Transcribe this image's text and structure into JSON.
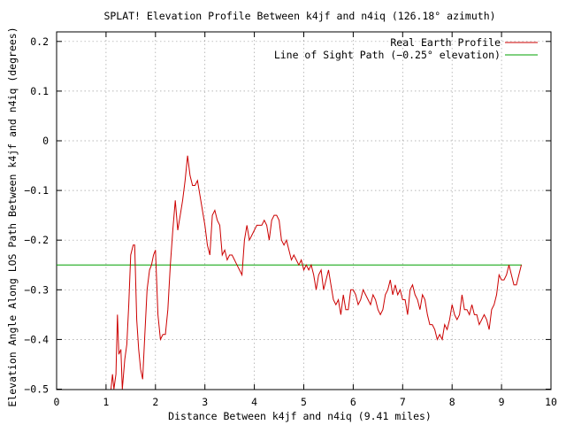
{
  "chart_data": {
    "type": "line",
    "title": "SPLAT! Elevation Profile Between k4jf and n4iq (126.18° azimuth)",
    "xlabel": "Distance Between k4jf and n4iq (9.41 miles)",
    "ylabel": "Elevation Angle Along LOS Path Between k4jf and n4iq (degrees)",
    "xlim": [
      0,
      10
    ],
    "ylim": [
      -0.5,
      0.22
    ],
    "x_ticks": [
      "0",
      "1",
      "2",
      "3",
      "4",
      "5",
      "6",
      "7",
      "8",
      "9",
      "10"
    ],
    "y_ticks": [
      "0.2",
      "0.1",
      "0",
      "−0.1",
      "−0.2",
      "−0.3",
      "−0.4",
      "−0.5"
    ],
    "grid": true,
    "legend_position": "top-right",
    "series": [
      {
        "name": "Real Earth Profile",
        "color": "#cc0000",
        "points": [
          [
            1.1,
            -0.5
          ],
          [
            1.13,
            -0.47
          ],
          [
            1.16,
            -0.5
          ],
          [
            1.2,
            -0.47
          ],
          [
            1.23,
            -0.35
          ],
          [
            1.26,
            -0.43
          ],
          [
            1.3,
            -0.42
          ],
          [
            1.33,
            -0.5
          ],
          [
            1.38,
            -0.44
          ],
          [
            1.42,
            -0.41
          ],
          [
            1.46,
            -0.33
          ],
          [
            1.5,
            -0.23
          ],
          [
            1.55,
            -0.21
          ],
          [
            1.58,
            -0.21
          ],
          [
            1.62,
            -0.36
          ],
          [
            1.66,
            -0.42
          ],
          [
            1.7,
            -0.46
          ],
          [
            1.74,
            -0.48
          ],
          [
            1.78,
            -0.4
          ],
          [
            1.83,
            -0.3
          ],
          [
            1.88,
            -0.26
          ],
          [
            1.92,
            -0.25
          ],
          [
            1.96,
            -0.23
          ],
          [
            2.0,
            -0.22
          ],
          [
            2.05,
            -0.35
          ],
          [
            2.1,
            -0.4
          ],
          [
            2.15,
            -0.39
          ],
          [
            2.2,
            -0.39
          ],
          [
            2.25,
            -0.34
          ],
          [
            2.3,
            -0.25
          ],
          [
            2.35,
            -0.18
          ],
          [
            2.4,
            -0.12
          ],
          [
            2.45,
            -0.18
          ],
          [
            2.5,
            -0.15
          ],
          [
            2.55,
            -0.12
          ],
          [
            2.6,
            -0.08
          ],
          [
            2.65,
            -0.03
          ],
          [
            2.7,
            -0.07
          ],
          [
            2.75,
            -0.09
          ],
          [
            2.8,
            -0.09
          ],
          [
            2.85,
            -0.08
          ],
          [
            2.9,
            -0.11
          ],
          [
            2.95,
            -0.14
          ],
          [
            3.0,
            -0.17
          ],
          [
            3.05,
            -0.21
          ],
          [
            3.1,
            -0.23
          ],
          [
            3.15,
            -0.15
          ],
          [
            3.2,
            -0.14
          ],
          [
            3.25,
            -0.16
          ],
          [
            3.3,
            -0.17
          ],
          [
            3.35,
            -0.23
          ],
          [
            3.4,
            -0.22
          ],
          [
            3.45,
            -0.24
          ],
          [
            3.5,
            -0.23
          ],
          [
            3.55,
            -0.23
          ],
          [
            3.6,
            -0.24
          ],
          [
            3.65,
            -0.25
          ],
          [
            3.7,
            -0.26
          ],
          [
            3.75,
            -0.27
          ],
          [
            3.8,
            -0.2
          ],
          [
            3.85,
            -0.17
          ],
          [
            3.9,
            -0.2
          ],
          [
            3.95,
            -0.19
          ],
          [
            4.0,
            -0.18
          ],
          [
            4.05,
            -0.17
          ],
          [
            4.1,
            -0.17
          ],
          [
            4.15,
            -0.17
          ],
          [
            4.2,
            -0.16
          ],
          [
            4.25,
            -0.17
          ],
          [
            4.3,
            -0.2
          ],
          [
            4.35,
            -0.16
          ],
          [
            4.4,
            -0.15
          ],
          [
            4.45,
            -0.15
          ],
          [
            4.5,
            -0.16
          ],
          [
            4.55,
            -0.2
          ],
          [
            4.6,
            -0.21
          ],
          [
            4.65,
            -0.2
          ],
          [
            4.7,
            -0.22
          ],
          [
            4.75,
            -0.24
          ],
          [
            4.8,
            -0.23
          ],
          [
            4.85,
            -0.24
          ],
          [
            4.9,
            -0.25
          ],
          [
            4.95,
            -0.24
          ],
          [
            5.0,
            -0.26
          ],
          [
            5.05,
            -0.25
          ],
          [
            5.1,
            -0.26
          ],
          [
            5.15,
            -0.25
          ],
          [
            5.2,
            -0.27
          ],
          [
            5.25,
            -0.3
          ],
          [
            5.3,
            -0.27
          ],
          [
            5.35,
            -0.26
          ],
          [
            5.4,
            -0.3
          ],
          [
            5.45,
            -0.28
          ],
          [
            5.5,
            -0.26
          ],
          [
            5.55,
            -0.29
          ],
          [
            5.6,
            -0.32
          ],
          [
            5.65,
            -0.33
          ],
          [
            5.7,
            -0.32
          ],
          [
            5.75,
            -0.35
          ],
          [
            5.8,
            -0.31
          ],
          [
            5.85,
            -0.34
          ],
          [
            5.9,
            -0.34
          ],
          [
            5.95,
            -0.3
          ],
          [
            6.0,
            -0.3
          ],
          [
            6.05,
            -0.31
          ],
          [
            6.1,
            -0.33
          ],
          [
            6.15,
            -0.32
          ],
          [
            6.2,
            -0.3
          ],
          [
            6.25,
            -0.31
          ],
          [
            6.3,
            -0.32
          ],
          [
            6.35,
            -0.33
          ],
          [
            6.4,
            -0.31
          ],
          [
            6.45,
            -0.32
          ],
          [
            6.5,
            -0.34
          ],
          [
            6.55,
            -0.35
          ],
          [
            6.6,
            -0.34
          ],
          [
            6.65,
            -0.31
          ],
          [
            6.7,
            -0.3
          ],
          [
            6.75,
            -0.28
          ],
          [
            6.8,
            -0.31
          ],
          [
            6.85,
            -0.29
          ],
          [
            6.9,
            -0.31
          ],
          [
            6.95,
            -0.3
          ],
          [
            7.0,
            -0.32
          ],
          [
            7.05,
            -0.32
          ],
          [
            7.1,
            -0.35
          ],
          [
            7.15,
            -0.3
          ],
          [
            7.2,
            -0.29
          ],
          [
            7.25,
            -0.31
          ],
          [
            7.3,
            -0.32
          ],
          [
            7.35,
            -0.34
          ],
          [
            7.4,
            -0.31
          ],
          [
            7.45,
            -0.32
          ],
          [
            7.5,
            -0.35
          ],
          [
            7.55,
            -0.37
          ],
          [
            7.6,
            -0.37
          ],
          [
            7.65,
            -0.38
          ],
          [
            7.7,
            -0.4
          ],
          [
            7.75,
            -0.39
          ],
          [
            7.8,
            -0.4
          ],
          [
            7.85,
            -0.37
          ],
          [
            7.9,
            -0.38
          ],
          [
            7.95,
            -0.36
          ],
          [
            8.0,
            -0.33
          ],
          [
            8.05,
            -0.35
          ],
          [
            8.1,
            -0.36
          ],
          [
            8.15,
            -0.35
          ],
          [
            8.2,
            -0.31
          ],
          [
            8.25,
            -0.34
          ],
          [
            8.3,
            -0.34
          ],
          [
            8.35,
            -0.35
          ],
          [
            8.4,
            -0.33
          ],
          [
            8.45,
            -0.35
          ],
          [
            8.5,
            -0.35
          ],
          [
            8.55,
            -0.37
          ],
          [
            8.6,
            -0.36
          ],
          [
            8.65,
            -0.35
          ],
          [
            8.7,
            -0.36
          ],
          [
            8.75,
            -0.38
          ],
          [
            8.8,
            -0.34
          ],
          [
            8.85,
            -0.33
          ],
          [
            8.9,
            -0.31
          ],
          [
            8.95,
            -0.27
          ],
          [
            9.0,
            -0.28
          ],
          [
            9.05,
            -0.28
          ],
          [
            9.1,
            -0.27
          ],
          [
            9.15,
            -0.25
          ],
          [
            9.2,
            -0.27
          ],
          [
            9.25,
            -0.29
          ],
          [
            9.3,
            -0.29
          ],
          [
            9.35,
            -0.27
          ],
          [
            9.4,
            -0.25
          ]
        ]
      },
      {
        "name": "Line of Sight Path (−0.25° elevation)",
        "color": "#00a000",
        "points": [
          [
            0,
            -0.25
          ],
          [
            9.41,
            -0.25
          ]
        ]
      }
    ]
  }
}
